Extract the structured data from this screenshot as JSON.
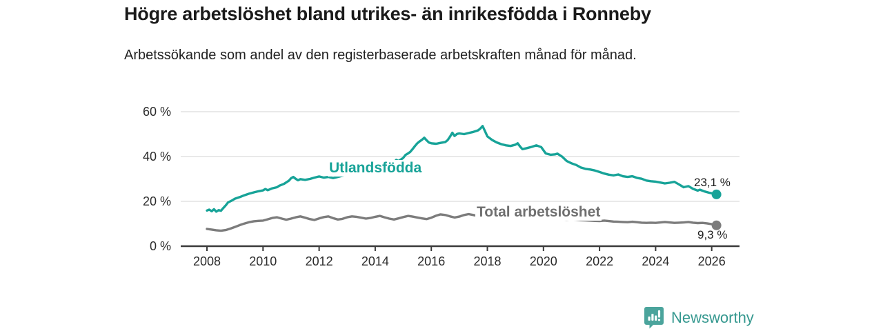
{
  "header": {
    "title": "Högre arbetslöshet bland utrikes- än inrikesfödda i Ronneby",
    "subtitle": "Arbetssökande som andel av den registerbaserade arbetskraften månad för månad."
  },
  "chart_data": {
    "type": "line",
    "title": "Högre arbetslöshet bland utrikes- än inrikesfödda i Ronneby",
    "unit": "%",
    "grid": "horizontal",
    "legend_position": "inline-labels",
    "colors": {
      "utlandsfodda": "#17a398",
      "total": "#7c7c7c",
      "total_label": "#6f6f6f",
      "gridline": "#dcdcdc",
      "axis": "#3a3a3a",
      "tick_text": "#2b2b2b"
    },
    "y_axis": {
      "labels": [
        "60 %",
        "40 %",
        "20 %",
        "0 %"
      ],
      "tick_values": [
        60,
        40,
        20,
        0
      ],
      "range": [
        0,
        62
      ]
    },
    "x_axis": {
      "labels": [
        "2008",
        "2010",
        "2012",
        "2014",
        "2016",
        "2018",
        "2020",
        "2022",
        "2024",
        "2026"
      ],
      "tick_values": [
        2008,
        2010,
        2012,
        2014,
        2016,
        2018,
        2020,
        2022,
        2024,
        2026
      ],
      "range": [
        2007.1,
        2027
      ]
    },
    "series": [
      {
        "name": "Utlandsfödda",
        "end_label": "23,1 %",
        "end_value": 23.1,
        "color": "#17a398",
        "points": [
          [
            2008.0,
            15.9
          ],
          [
            2008.08,
            16.3
          ],
          [
            2008.17,
            15.6
          ],
          [
            2008.25,
            16.5
          ],
          [
            2008.33,
            15.4
          ],
          [
            2008.42,
            16.1
          ],
          [
            2008.5,
            15.8
          ],
          [
            2008.58,
            17.0
          ],
          [
            2008.67,
            18.2
          ],
          [
            2008.75,
            19.5
          ],
          [
            2008.92,
            20.6
          ],
          [
            2009.0,
            21.2
          ],
          [
            2009.17,
            21.9
          ],
          [
            2009.33,
            22.7
          ],
          [
            2009.5,
            23.4
          ],
          [
            2009.67,
            24.0
          ],
          [
            2009.83,
            24.5
          ],
          [
            2010.0,
            24.9
          ],
          [
            2010.08,
            25.5
          ],
          [
            2010.17,
            25.0
          ],
          [
            2010.33,
            25.8
          ],
          [
            2010.5,
            26.3
          ],
          [
            2010.58,
            27.0
          ],
          [
            2010.75,
            27.8
          ],
          [
            2010.92,
            29.2
          ],
          [
            2011.0,
            30.3
          ],
          [
            2011.08,
            30.9
          ],
          [
            2011.17,
            30.0
          ],
          [
            2011.25,
            29.4
          ],
          [
            2011.33,
            29.9
          ],
          [
            2011.5,
            29.6
          ],
          [
            2011.67,
            30.0
          ],
          [
            2011.83,
            30.6
          ],
          [
            2012.0,
            31.1
          ],
          [
            2012.17,
            30.6
          ],
          [
            2012.33,
            30.9
          ],
          [
            2012.5,
            30.4
          ],
          [
            2012.67,
            30.9
          ],
          [
            2012.83,
            31.4
          ],
          [
            2013.0,
            31.9
          ],
          [
            2013.25,
            32.4
          ],
          [
            2013.5,
            32.9
          ],
          [
            2013.75,
            33.6
          ],
          [
            2014.0,
            34.6
          ],
          [
            2014.25,
            35.9
          ],
          [
            2014.42,
            37.0
          ],
          [
            2014.58,
            37.9
          ],
          [
            2014.67,
            37.4
          ],
          [
            2014.75,
            38.5
          ],
          [
            2014.83,
            38.0
          ],
          [
            2014.92,
            38.7
          ],
          [
            2015.0,
            39.4
          ],
          [
            2015.08,
            40.7
          ],
          [
            2015.17,
            41.4
          ],
          [
            2015.25,
            42.1
          ],
          [
            2015.33,
            43.3
          ],
          [
            2015.42,
            44.7
          ],
          [
            2015.5,
            45.9
          ],
          [
            2015.58,
            46.7
          ],
          [
            2015.67,
            47.5
          ],
          [
            2015.75,
            48.4
          ],
          [
            2015.83,
            47.3
          ],
          [
            2015.92,
            46.2
          ],
          [
            2016.0,
            45.9
          ],
          [
            2016.17,
            45.7
          ],
          [
            2016.33,
            46.1
          ],
          [
            2016.5,
            46.5
          ],
          [
            2016.58,
            47.3
          ],
          [
            2016.67,
            48.9
          ],
          [
            2016.75,
            50.6
          ],
          [
            2016.83,
            49.2
          ],
          [
            2016.92,
            50.1
          ],
          [
            2017.0,
            50.3
          ],
          [
            2017.17,
            50.0
          ],
          [
            2017.33,
            50.5
          ],
          [
            2017.5,
            51.0
          ],
          [
            2017.67,
            51.7
          ],
          [
            2017.75,
            52.5
          ],
          [
            2017.83,
            53.6
          ],
          [
            2017.92,
            51.2
          ],
          [
            2018.0,
            49.0
          ],
          [
            2018.17,
            47.4
          ],
          [
            2018.33,
            46.3
          ],
          [
            2018.5,
            45.5
          ],
          [
            2018.67,
            45.0
          ],
          [
            2018.83,
            44.7
          ],
          [
            2019.0,
            45.3
          ],
          [
            2019.08,
            45.9
          ],
          [
            2019.17,
            44.4
          ],
          [
            2019.25,
            43.3
          ],
          [
            2019.42,
            43.8
          ],
          [
            2019.58,
            44.3
          ],
          [
            2019.75,
            45.0
          ],
          [
            2019.92,
            44.2
          ],
          [
            2020.08,
            41.4
          ],
          [
            2020.25,
            40.8
          ],
          [
            2020.42,
            41.0
          ],
          [
            2020.5,
            41.3
          ],
          [
            2020.67,
            39.9
          ],
          [
            2020.83,
            38.0
          ],
          [
            2021.0,
            37.0
          ],
          [
            2021.17,
            36.2
          ],
          [
            2021.33,
            35.1
          ],
          [
            2021.5,
            34.5
          ],
          [
            2021.67,
            34.2
          ],
          [
            2021.83,
            33.8
          ],
          [
            2022.0,
            33.1
          ],
          [
            2022.17,
            32.4
          ],
          [
            2022.33,
            31.9
          ],
          [
            2022.5,
            31.6
          ],
          [
            2022.67,
            32.0
          ],
          [
            2022.83,
            31.2
          ],
          [
            2023.0,
            30.9
          ],
          [
            2023.17,
            31.2
          ],
          [
            2023.33,
            30.5
          ],
          [
            2023.5,
            30.1
          ],
          [
            2023.67,
            29.3
          ],
          [
            2023.83,
            29.0
          ],
          [
            2024.0,
            28.8
          ],
          [
            2024.17,
            28.4
          ],
          [
            2024.33,
            28.0
          ],
          [
            2024.5,
            28.3
          ],
          [
            2024.67,
            28.7
          ],
          [
            2024.83,
            27.6
          ],
          [
            2025.0,
            26.3
          ],
          [
            2025.17,
            26.8
          ],
          [
            2025.33,
            25.6
          ],
          [
            2025.5,
            24.8
          ],
          [
            2025.58,
            25.2
          ],
          [
            2025.75,
            24.4
          ],
          [
            2025.92,
            23.8
          ],
          [
            2026.08,
            23.4
          ],
          [
            2026.17,
            23.1
          ]
        ]
      },
      {
        "name": "Total arbetslöshet",
        "end_label": "9,3 %",
        "end_value": 9.3,
        "color": "#7c7c7c",
        "points": [
          [
            2008.0,
            7.7
          ],
          [
            2008.17,
            7.4
          ],
          [
            2008.33,
            7.1
          ],
          [
            2008.5,
            6.9
          ],
          [
            2008.67,
            7.2
          ],
          [
            2008.83,
            7.8
          ],
          [
            2009.0,
            8.6
          ],
          [
            2009.17,
            9.4
          ],
          [
            2009.33,
            10.1
          ],
          [
            2009.5,
            10.7
          ],
          [
            2009.67,
            11.1
          ],
          [
            2009.83,
            11.3
          ],
          [
            2010.0,
            11.4
          ],
          [
            2010.17,
            12.0
          ],
          [
            2010.33,
            12.6
          ],
          [
            2010.5,
            12.9
          ],
          [
            2010.67,
            12.3
          ],
          [
            2010.83,
            11.8
          ],
          [
            2011.0,
            12.3
          ],
          [
            2011.17,
            12.9
          ],
          [
            2011.33,
            13.3
          ],
          [
            2011.5,
            12.7
          ],
          [
            2011.67,
            12.1
          ],
          [
            2011.83,
            11.7
          ],
          [
            2012.0,
            12.4
          ],
          [
            2012.17,
            13.0
          ],
          [
            2012.33,
            13.3
          ],
          [
            2012.5,
            12.5
          ],
          [
            2012.67,
            11.9
          ],
          [
            2012.83,
            12.2
          ],
          [
            2013.0,
            12.9
          ],
          [
            2013.17,
            13.3
          ],
          [
            2013.33,
            13.1
          ],
          [
            2013.5,
            12.7
          ],
          [
            2013.67,
            12.3
          ],
          [
            2013.83,
            12.6
          ],
          [
            2014.0,
            13.1
          ],
          [
            2014.17,
            13.5
          ],
          [
            2014.33,
            12.9
          ],
          [
            2014.5,
            12.3
          ],
          [
            2014.67,
            11.9
          ],
          [
            2014.83,
            12.4
          ],
          [
            2015.0,
            13.0
          ],
          [
            2015.17,
            13.5
          ],
          [
            2015.33,
            13.2
          ],
          [
            2015.5,
            12.8
          ],
          [
            2015.67,
            12.4
          ],
          [
            2015.83,
            12.1
          ],
          [
            2016.0,
            12.7
          ],
          [
            2016.17,
            13.6
          ],
          [
            2016.33,
            14.2
          ],
          [
            2016.5,
            13.9
          ],
          [
            2016.67,
            13.3
          ],
          [
            2016.83,
            12.8
          ],
          [
            2017.0,
            13.2
          ],
          [
            2017.17,
            13.9
          ],
          [
            2017.33,
            14.3
          ],
          [
            2017.5,
            13.9
          ],
          [
            2017.67,
            13.4
          ],
          [
            2017.83,
            13.1
          ],
          [
            2018.0,
            13.6
          ],
          [
            2018.17,
            13.9
          ],
          [
            2018.33,
            13.4
          ],
          [
            2018.5,
            12.9
          ],
          [
            2018.67,
            12.6
          ],
          [
            2018.83,
            12.9
          ],
          [
            2019.0,
            13.2
          ],
          [
            2019.17,
            13.0
          ],
          [
            2019.33,
            12.6
          ],
          [
            2019.5,
            12.3
          ],
          [
            2019.67,
            12.1
          ],
          [
            2019.83,
            12.4
          ],
          [
            2020.0,
            12.6
          ],
          [
            2020.17,
            12.9
          ],
          [
            2020.33,
            12.6
          ],
          [
            2020.5,
            12.3
          ],
          [
            2020.67,
            12.0
          ],
          [
            2020.83,
            11.8
          ],
          [
            2021.0,
            12.0
          ],
          [
            2021.17,
            11.8
          ],
          [
            2021.33,
            11.6
          ],
          [
            2021.5,
            11.5
          ],
          [
            2021.67,
            11.4
          ],
          [
            2021.83,
            11.3
          ],
          [
            2022.0,
            11.2
          ],
          [
            2022.17,
            11.4
          ],
          [
            2022.33,
            11.2
          ],
          [
            2022.5,
            11.0
          ],
          [
            2022.67,
            10.9
          ],
          [
            2022.83,
            10.8
          ],
          [
            2023.0,
            10.7
          ],
          [
            2023.17,
            10.9
          ],
          [
            2023.33,
            10.7
          ],
          [
            2023.5,
            10.5
          ],
          [
            2023.67,
            10.4
          ],
          [
            2023.83,
            10.5
          ],
          [
            2024.0,
            10.4
          ],
          [
            2024.17,
            10.6
          ],
          [
            2024.33,
            10.8
          ],
          [
            2024.5,
            10.6
          ],
          [
            2024.67,
            10.4
          ],
          [
            2024.83,
            10.5
          ],
          [
            2025.0,
            10.6
          ],
          [
            2025.17,
            10.8
          ],
          [
            2025.33,
            10.5
          ],
          [
            2025.5,
            10.3
          ],
          [
            2025.67,
            10.4
          ],
          [
            2025.83,
            10.2
          ],
          [
            2026.0,
            9.8
          ],
          [
            2026.08,
            9.5
          ],
          [
            2026.17,
            9.3
          ]
        ]
      }
    ]
  },
  "footer": {
    "brand": "Newsworthy",
    "brand_color": "#35988f",
    "logo_icon": "speech-bubble-bar-chart-icon",
    "logo_icon_color": "#4ba49c"
  }
}
